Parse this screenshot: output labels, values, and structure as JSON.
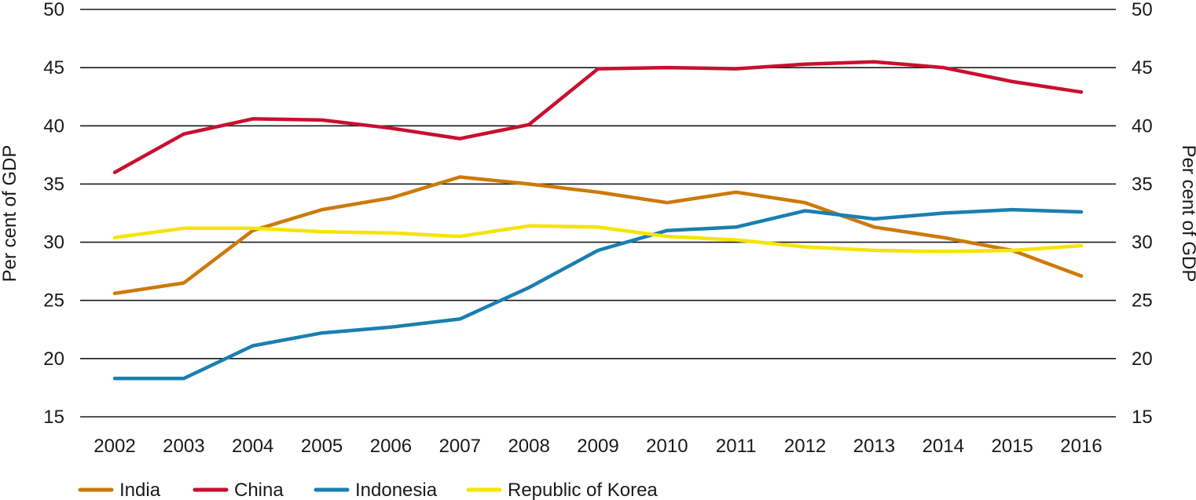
{
  "chart_data": {
    "type": "line",
    "title": "",
    "ylabel_left": "Per cent of GDP",
    "ylabel_right": "Per cent of GDP",
    "ylim": [
      15,
      50
    ],
    "yticks": [
      15,
      20,
      25,
      30,
      35,
      40,
      45,
      50
    ],
    "grid": true,
    "legend_position": "bottom-left",
    "x": [
      "2002",
      "2003",
      "2004",
      "2005",
      "2006",
      "2007",
      "2008",
      "2009",
      "2010",
      "2011",
      "2012",
      "2013",
      "2014",
      "2015",
      "2016"
    ],
    "series": [
      {
        "name": "India",
        "color": "#cc7a0a",
        "values": [
          25.6,
          26.5,
          31.0,
          32.8,
          33.8,
          35.6,
          35.0,
          34.3,
          33.4,
          34.3,
          33.4,
          31.3,
          30.4,
          29.3,
          27.1
        ]
      },
      {
        "name": "China",
        "color": "#c8102e",
        "values": [
          36.0,
          39.3,
          40.6,
          40.5,
          39.8,
          38.9,
          40.1,
          44.9,
          45.0,
          44.9,
          45.3,
          45.5,
          45.0,
          43.8,
          42.9
        ]
      },
      {
        "name": "Indonesia",
        "color": "#1a7fb0",
        "values": [
          18.3,
          18.3,
          21.1,
          22.2,
          22.7,
          23.4,
          26.1,
          29.3,
          31.0,
          31.3,
          32.7,
          32.0,
          32.5,
          32.8,
          32.6
        ]
      },
      {
        "name": "Republic of Korea",
        "color": "#f5e400",
        "values": [
          30.4,
          31.2,
          31.2,
          30.9,
          30.8,
          30.5,
          31.4,
          31.3,
          30.5,
          30.2,
          29.6,
          29.3,
          29.2,
          29.3,
          29.7
        ]
      }
    ]
  }
}
